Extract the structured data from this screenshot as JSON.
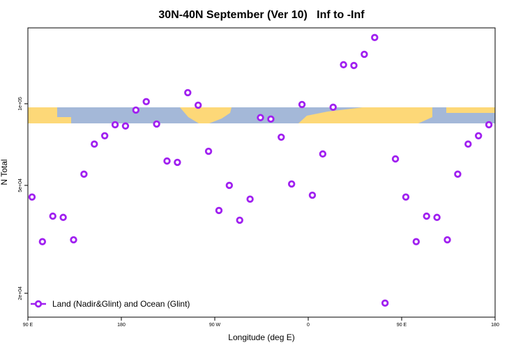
{
  "chart_data": {
    "type": "scatter",
    "title": "30N-40N September (Ver 10)   Inf to -Inf",
    "x_label": "Longitude (deg E)",
    "y_label": "N Total",
    "xlim": [
      90,
      540
    ],
    "xticks": [
      {
        "value": 90,
        "label": "90 E"
      },
      180,
      {
        "value": 270,
        "label": "90 W"
      },
      {
        "value": 360,
        "label": "0"
      },
      {
        "value": 450,
        "label": "90 E"
      },
      {
        "value": 540,
        "label": "180"
      }
    ],
    "ylim": [
      16330,
      190500
    ],
    "log_y": true,
    "yticks": [
      {
        "value": 20000,
        "label": "2e+04"
      },
      {
        "value": 50000,
        "label": "5e+04"
      },
      {
        "value": 100000,
        "label": "1e+05"
      }
    ],
    "legend": "bottom-left",
    "series": [
      {
        "name": "Land (Nadir&Glint) and Ocean (Glint)",
        "color": "#a020f0",
        "x": [
          94,
          104,
          114,
          124,
          134,
          144,
          154,
          164,
          174,
          184,
          194,
          204,
          214,
          224,
          234,
          244,
          254,
          264,
          274,
          284,
          294,
          304,
          314,
          324,
          334,
          344,
          354,
          364,
          374,
          384,
          394,
          404,
          414,
          424,
          434,
          444,
          454,
          464,
          474,
          484,
          494,
          504,
          514,
          524,
          534
        ],
        "values": [
          45300,
          31000,
          38500,
          38100,
          31500,
          55000,
          71000,
          76200,
          83700,
          82800,
          94800,
          101800,
          84200,
          61500,
          60800,
          109900,
          98800,
          66800,
          40400,
          50000,
          37200,
          44500,
          88900,
          87800,
          75300,
          50600,
          99400,
          46000,
          65300,
          97100,
          139300,
          138400,
          152200,
          175500,
          18400,
          62600,
          45300,
          31000,
          38500,
          38100,
          31500,
          55000,
          71000,
          76200,
          83700
        ]
      }
    ]
  }
}
